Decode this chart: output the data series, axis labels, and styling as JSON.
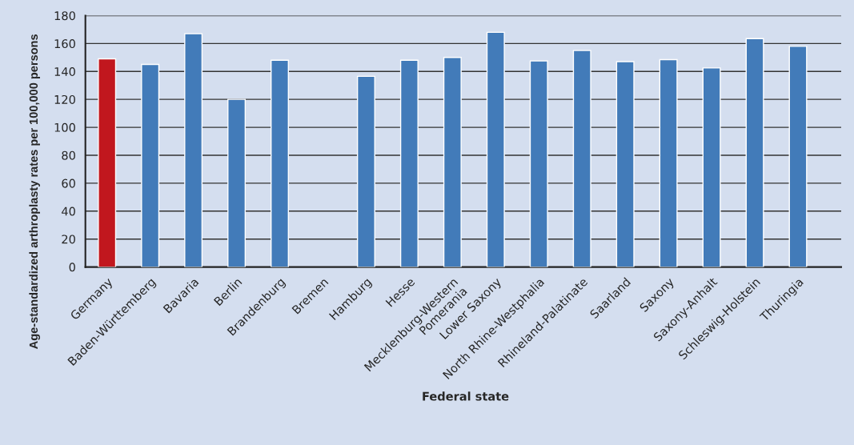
{
  "chart_data": {
    "type": "bar",
    "xlabel": "Federal state",
    "ylabel": "Age-standardized arthroplasty rates per 100,000 persons",
    "categories": [
      "Germany",
      "Baden-Württemberg",
      "Bavaria",
      "Berlin",
      "Brandenburg",
      "Bremen",
      "Hamburg",
      "Hesse",
      "Mecklenburg-Western\nPomerania",
      "Lower Saxony",
      "North Rhine-Westphalia",
      "Rhineland-Palatinate",
      "Saarland",
      "Saxony",
      "Saxony-Anhalt",
      "Schleswig-Holstein",
      "Thuringia"
    ],
    "values": [
      149,
      145,
      167,
      120,
      148,
      null,
      136.5,
      148,
      150,
      168,
      147.5,
      155,
      147,
      148.5,
      142.5,
      163.5,
      158
    ],
    "colors": [
      "#c1171e",
      "#427bb9",
      "#427bb9",
      "#427bb9",
      "#427bb9",
      "#427bb9",
      "#427bb9",
      "#427bb9",
      "#427bb9",
      "#427bb9",
      "#427bb9",
      "#427bb9",
      "#427bb9",
      "#427bb9",
      "#427bb9",
      "#427bb9",
      "#427bb9"
    ],
    "ylim": [
      0,
      180
    ],
    "yticks": [
      0,
      20,
      40,
      60,
      80,
      100,
      120,
      140,
      160,
      180
    ],
    "grid": "y"
  }
}
